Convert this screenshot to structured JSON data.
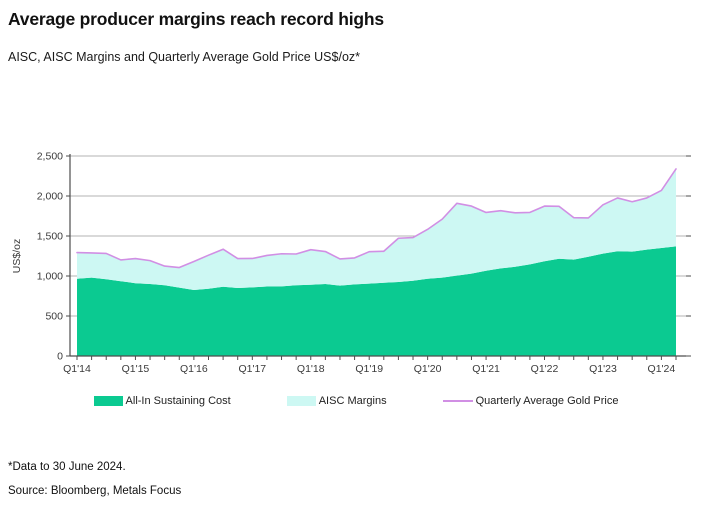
{
  "title": "Average producer margins reach record highs",
  "subtitle": "AISC, AISC Margins and Quarterly Average Gold Price US$/oz*",
  "footnote": "*Data to 30 June 2024.",
  "source": "Source: Bloomberg, Metals Focus",
  "colors": {
    "aisc": "#0bca91",
    "margins": "#cdf8f3",
    "gold_price": "#d18fe4",
    "gridline": "#b3b3b3",
    "axis": "#4d4d4d",
    "text": "#3a3a3a"
  },
  "legend": [
    {
      "label": "All-In Sustaining Cost",
      "swatch": "area-green"
    },
    {
      "label": "AISC Margins",
      "swatch": "area-cyan"
    },
    {
      "label": "Quarterly Average Gold Price",
      "swatch": "line-purple"
    }
  ],
  "chart_data": {
    "type": "area",
    "title": "Average producer margins reach record highs",
    "subtitle": "AISC, AISC Margins and Quarterly Average Gold Price US$/oz*",
    "xlabel": "",
    "ylabel": "US$/oz",
    "ylim": [
      0,
      2500
    ],
    "y_ticks": [
      0,
      500,
      1000,
      1500,
      2000,
      2500
    ],
    "y_tick_labels": [
      "0",
      "500",
      "1,000",
      "1,500",
      "2,000",
      "2,500"
    ],
    "grid": true,
    "legend_position": "bottom",
    "x_tick_labels_visible": [
      "Q1'14",
      "Q1'15",
      "Q1'16",
      "Q1'17",
      "Q1'18",
      "Q1'19",
      "Q1'20",
      "Q1'21",
      "Q1'22",
      "Q1'23",
      "Q1'24"
    ],
    "x": [
      "Q1'14",
      "Q2'14",
      "Q3'14",
      "Q4'14",
      "Q1'15",
      "Q2'15",
      "Q3'15",
      "Q4'15",
      "Q1'16",
      "Q2'16",
      "Q3'16",
      "Q4'16",
      "Q1'17",
      "Q2'17",
      "Q3'17",
      "Q4'17",
      "Q1'18",
      "Q2'18",
      "Q3'18",
      "Q4'18",
      "Q1'19",
      "Q2'19",
      "Q3'19",
      "Q4'19",
      "Q1'20",
      "Q2'20",
      "Q3'20",
      "Q4'20",
      "Q1'21",
      "Q2'21",
      "Q3'21",
      "Q4'21",
      "Q1'22",
      "Q2'22",
      "Q3'22",
      "Q4'22",
      "Q1'23",
      "Q2'23",
      "Q3'23",
      "Q4'23",
      "Q1'24",
      "Q2'24"
    ],
    "series": [
      {
        "name": "All-In Sustaining Cost",
        "type": "area",
        "values": [
          965,
          980,
          960,
          935,
          910,
          900,
          885,
          855,
          825,
          840,
          865,
          850,
          858,
          868,
          870,
          885,
          890,
          900,
          880,
          895,
          905,
          915,
          925,
          940,
          965,
          980,
          1005,
          1030,
          1065,
          1095,
          1115,
          1145,
          1185,
          1215,
          1205,
          1240,
          1280,
          1310,
          1305,
          1330,
          1350,
          1370
        ]
      },
      {
        "name": "AISC Margins",
        "type": "area",
        "note": "band stacked between AISC and gold price",
        "values": [
          328,
          308,
          322,
          266,
          308,
          292,
          239,
          251,
          356,
          420,
          470,
          368,
          361,
          389,
          408,
          390,
          439,
          406,
          333,
          331,
          399,
          394,
          547,
          541,
          618,
          731,
          904,
          844,
          729,
          721,
          675,
          650,
          689,
          656,
          524,
          486,
          610,
          666,
          623,
          646,
          720,
          968
        ]
      },
      {
        "name": "Quarterly Average Gold Price",
        "type": "line",
        "values": [
          1293,
          1288,
          1282,
          1201,
          1218,
          1192,
          1124,
          1106,
          1181,
          1260,
          1335,
          1218,
          1219,
          1257,
          1278,
          1275,
          1329,
          1306,
          1213,
          1226,
          1304,
          1309,
          1472,
          1481,
          1583,
          1711,
          1909,
          1874,
          1794,
          1816,
          1790,
          1795,
          1874,
          1871,
          1729,
          1726,
          1890,
          1976,
          1928,
          1976,
          2070,
          2338
        ]
      }
    ]
  }
}
